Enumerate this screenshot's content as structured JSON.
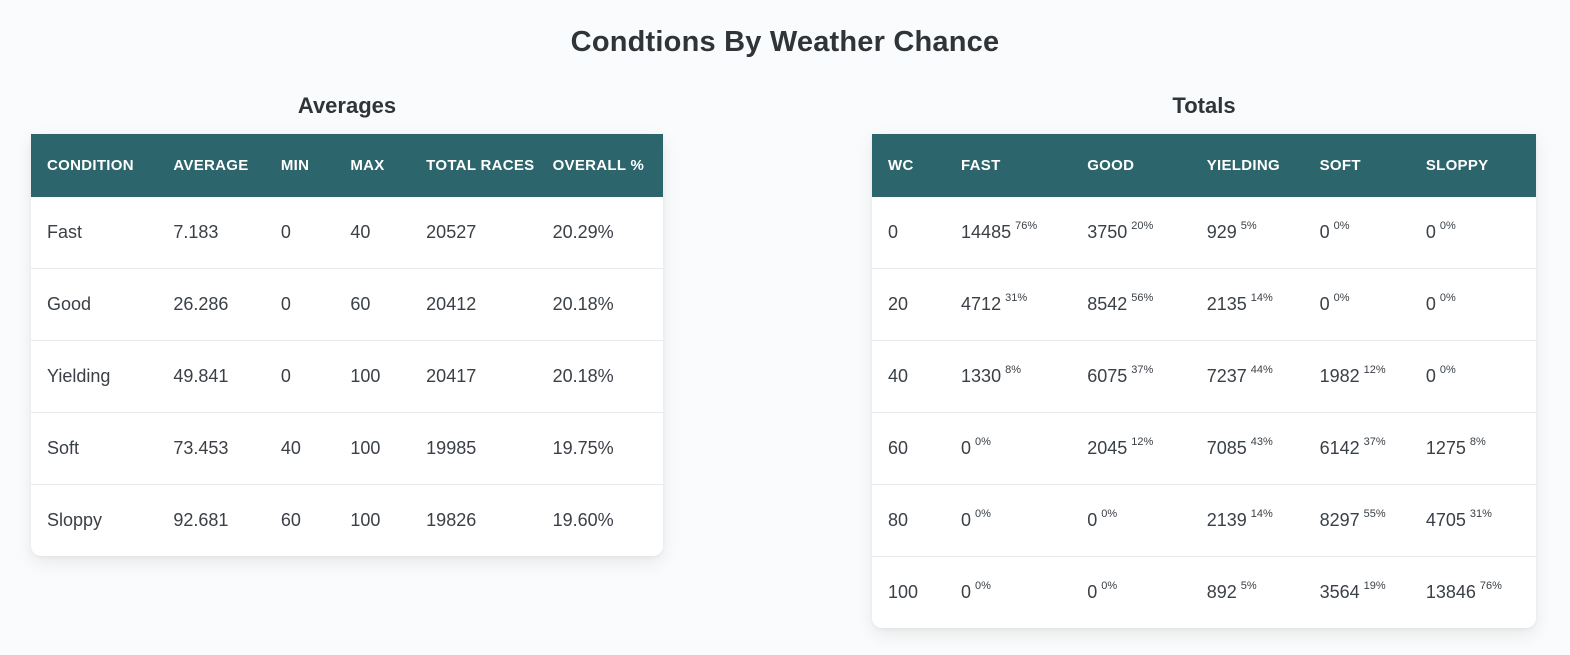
{
  "page": {
    "title": "Condtions By Weather Chance"
  },
  "colors": {
    "header_bg": "#2c656b",
    "header_text": "#ffffff",
    "body_text": "#3a4046",
    "page_bg": "#fafbfc",
    "card_bg": "#ffffff",
    "row_divider": "#e7eaec"
  },
  "averages_table": {
    "heading": "Averages",
    "columns": [
      "CONDITION",
      "AVERAGE",
      "MIN",
      "MAX",
      "TOTAL RACES",
      "OVERALL %"
    ],
    "rows": [
      {
        "condition": "Fast",
        "average": "7.183",
        "min": "0",
        "max": "40",
        "total_races": "20527",
        "overall_pct": "20.29%"
      },
      {
        "condition": "Good",
        "average": "26.286",
        "min": "0",
        "max": "60",
        "total_races": "20412",
        "overall_pct": "20.18%"
      },
      {
        "condition": "Yielding",
        "average": "49.841",
        "min": "0",
        "max": "100",
        "total_races": "20417",
        "overall_pct": "20.18%"
      },
      {
        "condition": "Soft",
        "average": "73.453",
        "min": "40",
        "max": "100",
        "total_races": "19985",
        "overall_pct": "19.75%"
      },
      {
        "condition": "Sloppy",
        "average": "92.681",
        "min": "60",
        "max": "100",
        "total_races": "19826",
        "overall_pct": "19.60%"
      }
    ]
  },
  "totals_table": {
    "heading": "Totals",
    "columns": [
      "WC",
      "FAST",
      "GOOD",
      "YIELDING",
      "SOFT",
      "SLOPPY"
    ],
    "rows": [
      {
        "wc": "0",
        "cells": [
          {
            "value": "14485",
            "pct": "76%"
          },
          {
            "value": "3750",
            "pct": "20%"
          },
          {
            "value": "929",
            "pct": "5%"
          },
          {
            "value": "0",
            "pct": "0%"
          },
          {
            "value": "0",
            "pct": "0%"
          }
        ]
      },
      {
        "wc": "20",
        "cells": [
          {
            "value": "4712",
            "pct": "31%"
          },
          {
            "value": "8542",
            "pct": "56%"
          },
          {
            "value": "2135",
            "pct": "14%"
          },
          {
            "value": "0",
            "pct": "0%"
          },
          {
            "value": "0",
            "pct": "0%"
          }
        ]
      },
      {
        "wc": "40",
        "cells": [
          {
            "value": "1330",
            "pct": "8%"
          },
          {
            "value": "6075",
            "pct": "37%"
          },
          {
            "value": "7237",
            "pct": "44%"
          },
          {
            "value": "1982",
            "pct": "12%"
          },
          {
            "value": "0",
            "pct": "0%"
          }
        ]
      },
      {
        "wc": "60",
        "cells": [
          {
            "value": "0",
            "pct": "0%"
          },
          {
            "value": "2045",
            "pct": "12%"
          },
          {
            "value": "7085",
            "pct": "43%"
          },
          {
            "value": "6142",
            "pct": "37%"
          },
          {
            "value": "1275",
            "pct": "8%"
          }
        ]
      },
      {
        "wc": "80",
        "cells": [
          {
            "value": "0",
            "pct": "0%"
          },
          {
            "value": "0",
            "pct": "0%"
          },
          {
            "value": "2139",
            "pct": "14%"
          },
          {
            "value": "8297",
            "pct": "55%"
          },
          {
            "value": "4705",
            "pct": "31%"
          }
        ]
      },
      {
        "wc": "100",
        "cells": [
          {
            "value": "0",
            "pct": "0%"
          },
          {
            "value": "0",
            "pct": "0%"
          },
          {
            "value": "892",
            "pct": "5%"
          },
          {
            "value": "3564",
            "pct": "19%"
          },
          {
            "value": "13846",
            "pct": "76%"
          }
        ]
      }
    ]
  }
}
